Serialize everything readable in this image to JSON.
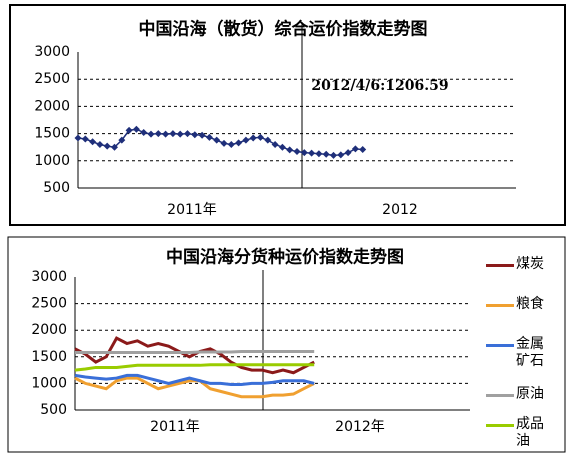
{
  "chart_data": [
    {
      "type": "line",
      "title": "中国沿海（散货）综合运价指数走势图",
      "annotation": "2012/4/6:1206.59",
      "x_labels": [
        "2011年",
        "2012"
      ],
      "values": [
        1420,
        1400,
        1350,
        1300,
        1270,
        1250,
        1380,
        1560,
        1580,
        1520,
        1490,
        1500,
        1490,
        1500,
        1490,
        1500,
        1480,
        1470,
        1430,
        1380,
        1320,
        1300,
        1330,
        1380,
        1420,
        1430,
        1380,
        1300,
        1250,
        1200,
        1170,
        1150,
        1140,
        1130,
        1120,
        1100,
        1110,
        1150,
        1220,
        1206.59
      ],
      "color": "#1f2f7a",
      "marker": "diamond",
      "ylim": [
        500,
        3000
      ],
      "yticks": [
        500,
        1000,
        1500,
        2000,
        2500,
        3000
      ],
      "grid": true
    },
    {
      "type": "line",
      "title": "中国沿海分货种运价指数走势图",
      "x_labels": [
        "2011年",
        "2012年"
      ],
      "legend": "right",
      "series": [
        {
          "name": "煤炭",
          "color": "#8b1a1a",
          "values": [
            1650,
            1550,
            1400,
            1500,
            1850,
            1750,
            1800,
            1700,
            1750,
            1700,
            1600,
            1500,
            1600,
            1650,
            1550,
            1400,
            1300,
            1250,
            1250,
            1200,
            1250,
            1200,
            1300,
            1400
          ]
        },
        {
          "name": "粮食",
          "color": "#f0a030",
          "values": [
            1100,
            1000,
            950,
            900,
            1050,
            1100,
            1100,
            1000,
            900,
            950,
            1000,
            1050,
            1050,
            900,
            850,
            800,
            750,
            750,
            750,
            780,
            780,
            800,
            900,
            1000
          ]
        },
        {
          "name": "金属矿石",
          "color": "#3a6fd8",
          "values": [
            1150,
            1120,
            1100,
            1080,
            1100,
            1150,
            1150,
            1100,
            1050,
            1000,
            1050,
            1100,
            1050,
            1000,
            1000,
            980,
            980,
            1000,
            1000,
            1020,
            1050,
            1050,
            1050,
            1000
          ]
        },
        {
          "name": "原油",
          "color": "#a0a0a0",
          "values": [
            1580,
            1580,
            1580,
            1580,
            1580,
            1580,
            1580,
            1580,
            1580,
            1580,
            1580,
            1580,
            1590,
            1590,
            1590,
            1590,
            1600,
            1600,
            1600,
            1600,
            1600,
            1600,
            1600,
            1600
          ]
        },
        {
          "name": "成品油",
          "color": "#99cc00",
          "values": [
            1250,
            1270,
            1300,
            1300,
            1300,
            1320,
            1340,
            1340,
            1340,
            1340,
            1340,
            1340,
            1340,
            1350,
            1350,
            1350,
            1350,
            1350,
            1350,
            1350,
            1350,
            1350,
            1350,
            1350
          ]
        }
      ],
      "ylim": [
        500,
        3000
      ],
      "yticks": [
        500,
        1000,
        1500,
        2000,
        2500,
        3000
      ],
      "grid": true
    }
  ]
}
